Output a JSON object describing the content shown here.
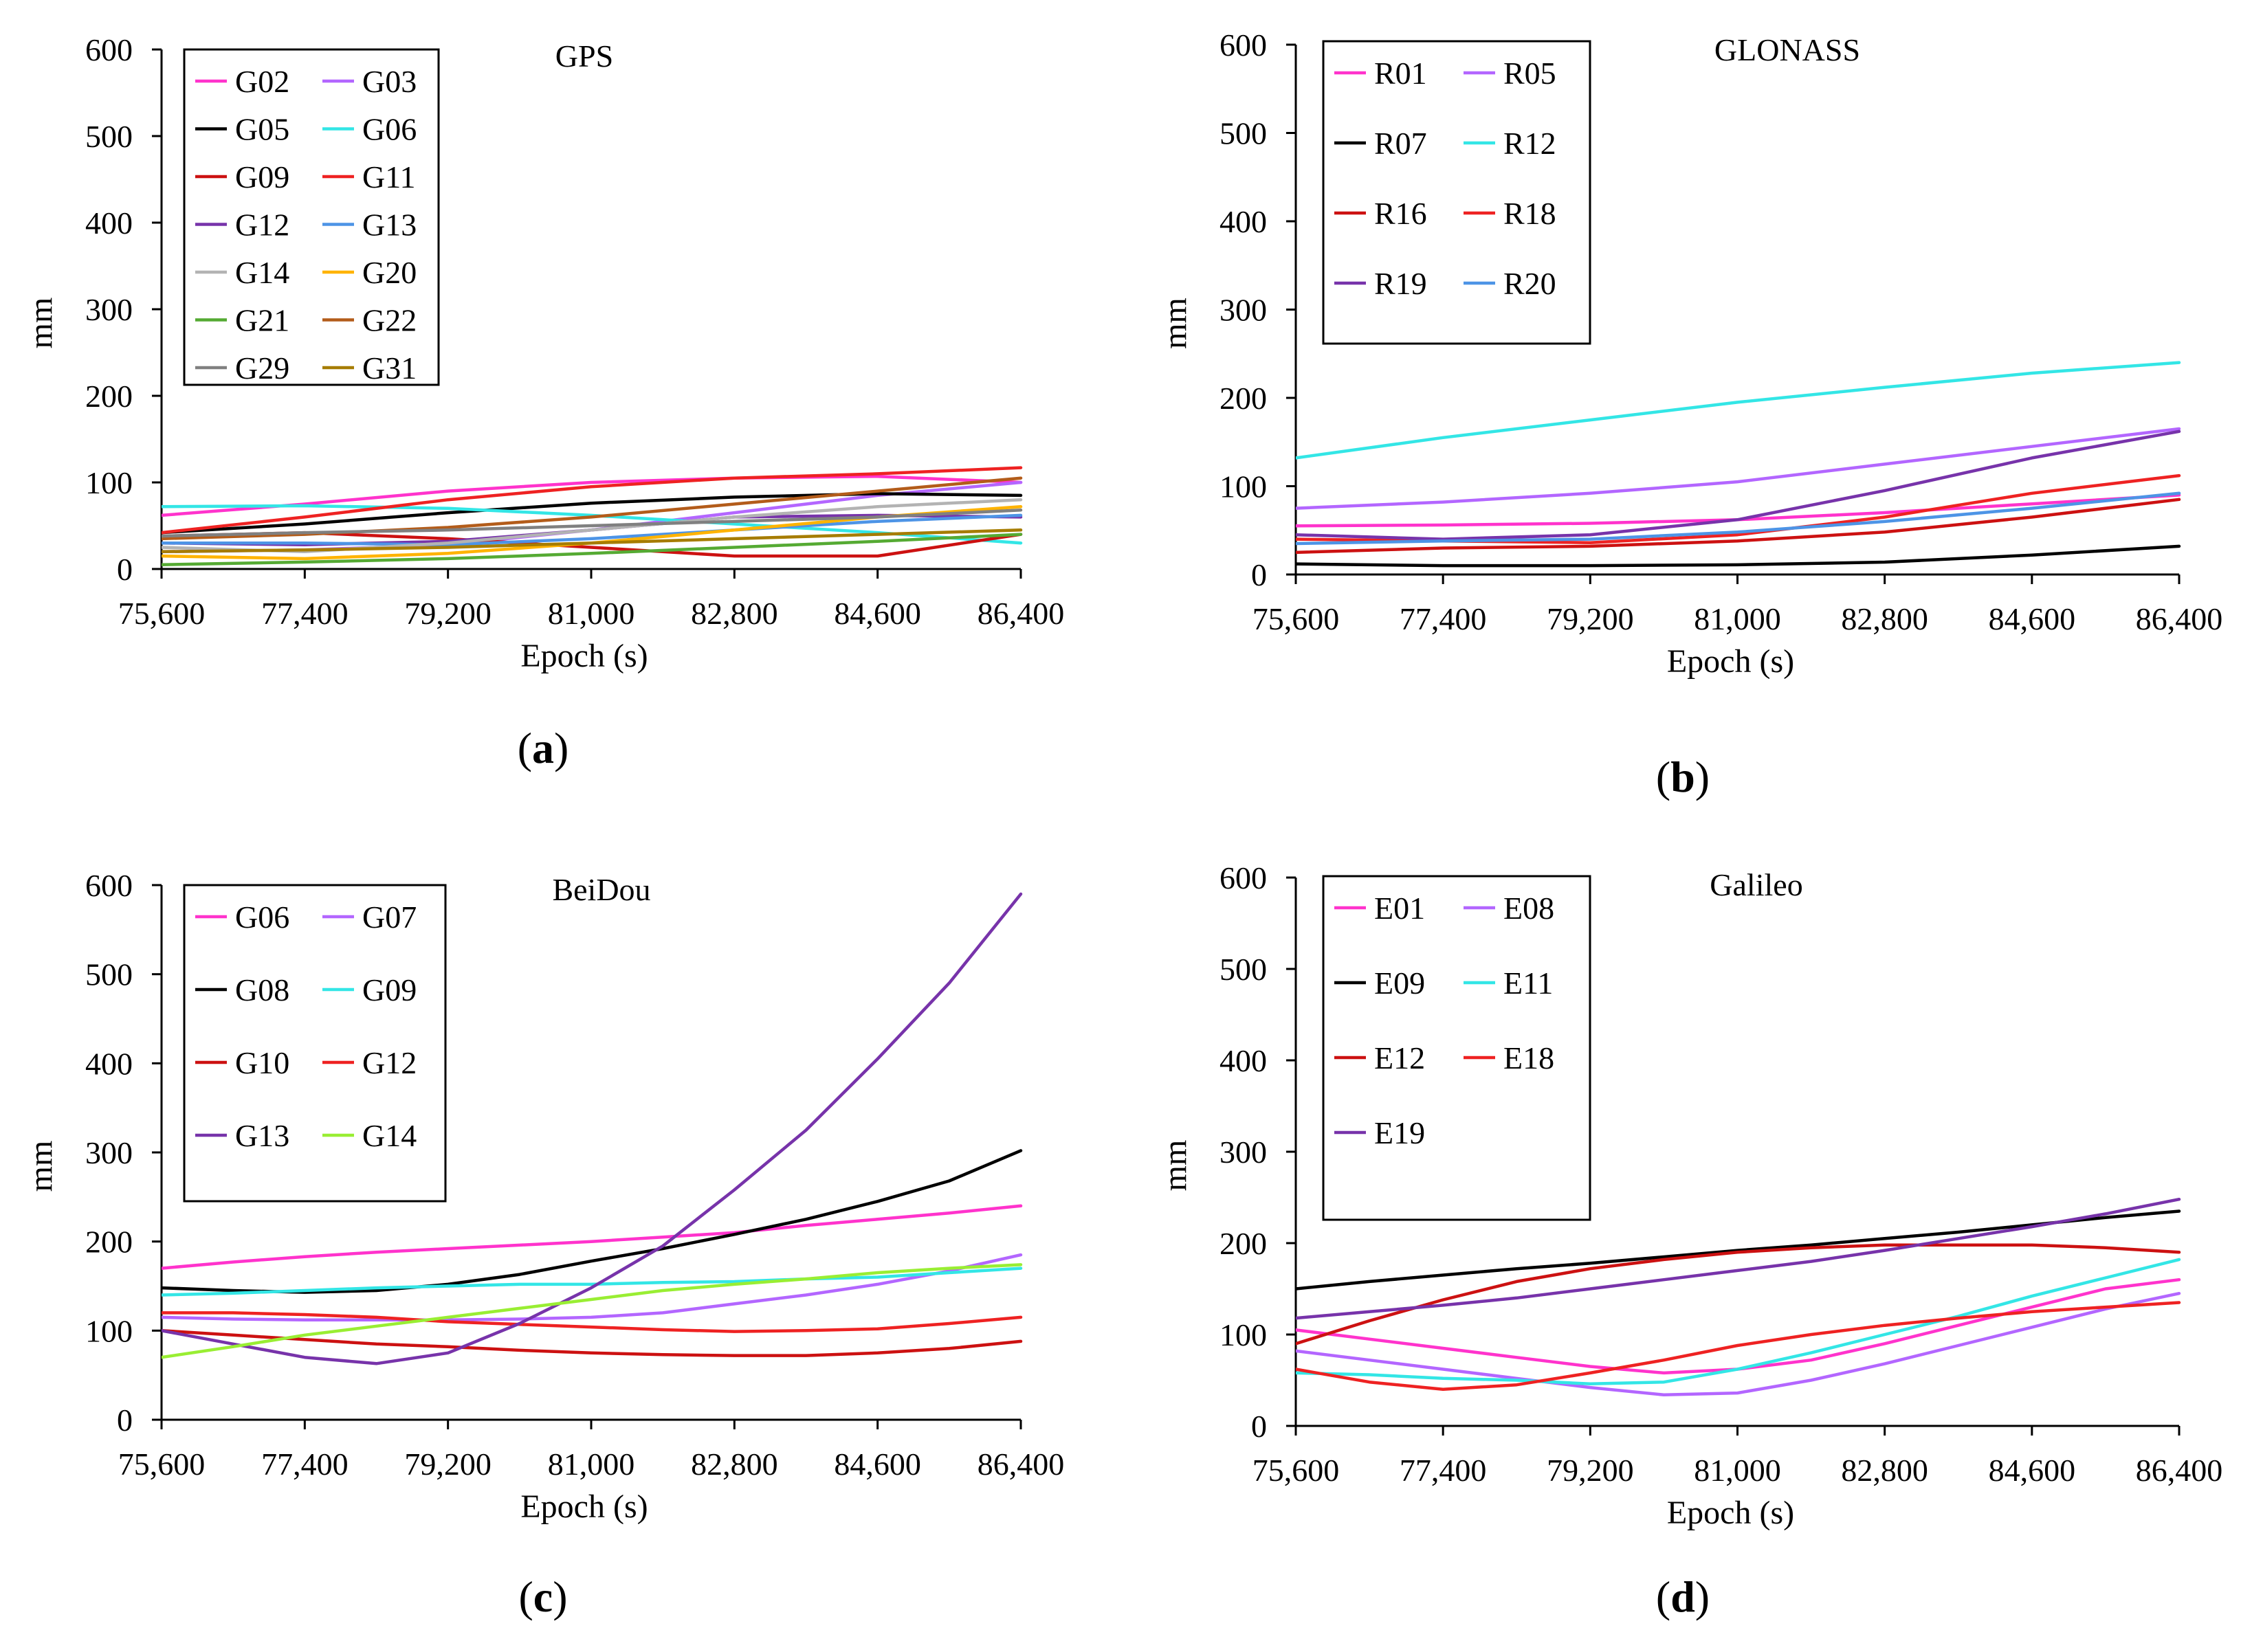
{
  "chart_data": [
    {
      "type": "line",
      "panel_label": "a",
      "title": "GPS",
      "xlabel": "Epoch (s)",
      "ylabel": "mm",
      "xlim": [
        75600,
        86400
      ],
      "ylim": [
        0,
        600
      ],
      "x_ticks": [
        75600,
        77400,
        79200,
        81000,
        82800,
        84600,
        86400
      ],
      "x_tick_labels": [
        "75,600",
        "77,400",
        "79,200",
        "81,000",
        "82,800",
        "84,600",
        "86,400"
      ],
      "y_ticks": [
        0,
        100,
        200,
        300,
        400,
        500,
        600
      ],
      "y_tick_labels": [
        "0",
        "100",
        "200",
        "300",
        "400",
        "500",
        "600"
      ],
      "legend_position": "top-left",
      "legend_columns": 2,
      "x": [
        75600,
        77400,
        79200,
        81000,
        82800,
        84600,
        86400
      ],
      "series": [
        {
          "name": "G02",
          "color": "#ff33cc",
          "values": [
            62,
            75,
            90,
            100,
            105,
            107,
            100
          ]
        },
        {
          "name": "G03",
          "color": "#b366ff",
          "values": [
            20,
            22,
            28,
            45,
            65,
            85,
            100
          ]
        },
        {
          "name": "G05",
          "color": "#000000",
          "values": [
            42,
            52,
            65,
            76,
            83,
            87,
            85
          ]
        },
        {
          "name": "G06",
          "color": "#33e6e6",
          "values": [
            72,
            73,
            70,
            62,
            52,
            42,
            30
          ]
        },
        {
          "name": "G09",
          "color": "#cc1111",
          "values": [
            38,
            42,
            35,
            25,
            15,
            15,
            40
          ]
        },
        {
          "name": "G11",
          "color": "#ee2222",
          "values": [
            42,
            60,
            80,
            95,
            105,
            110,
            117
          ]
        },
        {
          "name": "G12",
          "color": "#7733aa",
          "values": [
            30,
            28,
            32,
            45,
            60,
            62,
            60
          ]
        },
        {
          "name": "G13",
          "color": "#4d94e6",
          "values": [
            30,
            30,
            28,
            35,
            45,
            55,
            62
          ]
        },
        {
          "name": "G14",
          "color": "#b3b3b3",
          "values": [
            25,
            20,
            30,
            45,
            60,
            72,
            80
          ]
        },
        {
          "name": "G20",
          "color": "#ffb300",
          "values": [
            15,
            12,
            18,
            30,
            45,
            60,
            72
          ]
        },
        {
          "name": "G21",
          "color": "#55aa33",
          "values": [
            5,
            8,
            12,
            18,
            25,
            32,
            40
          ]
        },
        {
          "name": "G22",
          "color": "#b35c1a",
          "values": [
            35,
            40,
            48,
            60,
            75,
            90,
            105
          ]
        },
        {
          "name": "G29",
          "color": "#808080",
          "values": [
            38,
            42,
            45,
            50,
            55,
            60,
            68
          ]
        },
        {
          "name": "G31",
          "color": "#a67c00",
          "values": [
            20,
            22,
            25,
            30,
            35,
            40,
            45
          ]
        }
      ]
    },
    {
      "type": "line",
      "panel_label": "b",
      "title": "GLONASS",
      "xlabel": "Epoch (s)",
      "ylabel": "mm",
      "xlim": [
        75600,
        86400
      ],
      "ylim": [
        0,
        600
      ],
      "x_ticks": [
        75600,
        77400,
        79200,
        81000,
        82800,
        84600,
        86400
      ],
      "x_tick_labels": [
        "75,600",
        "77,400",
        "79,200",
        "81,000",
        "82,800",
        "84,600",
        "86,400"
      ],
      "y_ticks": [
        0,
        100,
        200,
        300,
        400,
        500,
        600
      ],
      "y_tick_labels": [
        "0",
        "100",
        "200",
        "300",
        "400",
        "500",
        "600"
      ],
      "legend_position": "top-left",
      "legend_columns": 2,
      "x": [
        75600,
        77400,
        79200,
        81000,
        82800,
        84600,
        86400
      ],
      "series": [
        {
          "name": "R01",
          "color": "#ff33cc",
          "values": [
            55,
            56,
            58,
            62,
            70,
            80,
            90
          ]
        },
        {
          "name": "R05",
          "color": "#b366ff",
          "values": [
            75,
            82,
            92,
            105,
            125,
            145,
            165
          ]
        },
        {
          "name": "R07",
          "color": "#000000",
          "values": [
            12,
            10,
            10,
            11,
            14,
            22,
            32
          ]
        },
        {
          "name": "R12",
          "color": "#33e6e6",
          "values": [
            132,
            155,
            175,
            195,
            212,
            228,
            240
          ]
        },
        {
          "name": "R16",
          "color": "#cc1111",
          "values": [
            25,
            30,
            32,
            38,
            48,
            65,
            85
          ]
        },
        {
          "name": "R18",
          "color": "#ee2222",
          "values": [
            40,
            38,
            36,
            45,
            65,
            92,
            112
          ]
        },
        {
          "name": "R19",
          "color": "#7733aa",
          "values": [
            45,
            40,
            45,
            62,
            95,
            132,
            162
          ]
        },
        {
          "name": "R20",
          "color": "#4d94e6",
          "values": [
            35,
            38,
            40,
            48,
            60,
            75,
            92
          ]
        }
      ]
    },
    {
      "type": "line",
      "panel_label": "c",
      "title": "BeiDou",
      "xlabel": "Epoch (s)",
      "ylabel": "mm",
      "xlim": [
        75600,
        86400
      ],
      "ylim": [
        0,
        600
      ],
      "x_ticks": [
        75600,
        77400,
        79200,
        81000,
        82800,
        84600,
        86400
      ],
      "x_tick_labels": [
        "75,600",
        "77,400",
        "79,200",
        "81,000",
        "82,800",
        "84,600",
        "86,400"
      ],
      "y_ticks": [
        0,
        100,
        200,
        300,
        400,
        500,
        600
      ],
      "y_tick_labels": [
        "0",
        "100",
        "200",
        "300",
        "400",
        "500",
        "600"
      ],
      "legend_position": "top-left",
      "legend_columns": 2,
      "x": [
        75600,
        76500,
        77400,
        78300,
        79200,
        80100,
        81000,
        81900,
        82800,
        83700,
        84600,
        85500,
        86400
      ],
      "series": [
        {
          "name": "G06",
          "color": "#ff33cc",
          "values": [
            170,
            177,
            183,
            188,
            192,
            196,
            200,
            205,
            210,
            218,
            225,
            232,
            240
          ]
        },
        {
          "name": "G07",
          "color": "#b366ff",
          "values": [
            115,
            113,
            112,
            112,
            112,
            113,
            115,
            120,
            130,
            140,
            152,
            167,
            185
          ]
        },
        {
          "name": "G08",
          "color": "#000000",
          "values": [
            148,
            145,
            143,
            145,
            152,
            163,
            178,
            192,
            208,
            225,
            245,
            268,
            302
          ]
        },
        {
          "name": "G09",
          "color": "#33e6e6",
          "values": [
            140,
            142,
            145,
            148,
            150,
            152,
            152,
            154,
            155,
            158,
            160,
            165,
            170
          ]
        },
        {
          "name": "G10",
          "color": "#cc1111",
          "values": [
            100,
            95,
            90,
            85,
            82,
            78,
            75,
            73,
            72,
            72,
            75,
            80,
            88
          ]
        },
        {
          "name": "G12",
          "color": "#ee2222",
          "values": [
            120,
            120,
            118,
            115,
            110,
            107,
            104,
            101,
            99,
            100,
            102,
            108,
            115
          ]
        },
        {
          "name": "G13",
          "color": "#7733aa",
          "values": [
            100,
            85,
            70,
            63,
            75,
            108,
            148,
            195,
            258,
            325,
            405,
            490,
            590
          ]
        },
        {
          "name": "G14",
          "color": "#99ee33",
          "values": [
            70,
            82,
            95,
            105,
            115,
            125,
            135,
            145,
            152,
            158,
            165,
            170,
            174
          ]
        }
      ]
    },
    {
      "type": "line",
      "panel_label": "d",
      "title": "Galileo",
      "xlabel": "Epoch (s)",
      "ylabel": "mm",
      "xlim": [
        75600,
        86400
      ],
      "ylim": [
        0,
        600
      ],
      "x_ticks": [
        75600,
        77400,
        79200,
        81000,
        82800,
        84600,
        86400
      ],
      "x_tick_labels": [
        "75,600",
        "77,400",
        "79,200",
        "81,000",
        "82,800",
        "84,600",
        "86,400"
      ],
      "y_ticks": [
        0,
        100,
        200,
        300,
        400,
        500,
        600
      ],
      "y_tick_labels": [
        "0",
        "100",
        "200",
        "300",
        "400",
        "500",
        "600"
      ],
      "legend_position": "top-left",
      "legend_columns": 2,
      "x": [
        75600,
        76500,
        77400,
        78300,
        79200,
        80100,
        81000,
        81900,
        82800,
        83700,
        84600,
        85500,
        86400
      ],
      "series": [
        {
          "name": "E01",
          "color": "#ff33cc",
          "values": [
            105,
            95,
            85,
            75,
            65,
            58,
            62,
            72,
            90,
            110,
            130,
            150,
            160
          ]
        },
        {
          "name": "E08",
          "color": "#b366ff",
          "values": [
            82,
            72,
            62,
            52,
            42,
            34,
            36,
            50,
            68,
            88,
            108,
            128,
            145
          ]
        },
        {
          "name": "E09",
          "color": "#000000",
          "values": [
            150,
            158,
            165,
            172,
            178,
            185,
            192,
            198,
            205,
            212,
            220,
            228,
            235
          ]
        },
        {
          "name": "E11",
          "color": "#33e6e6",
          "values": [
            58,
            56,
            52,
            50,
            46,
            48,
            62,
            80,
            100,
            120,
            142,
            162,
            182
          ]
        },
        {
          "name": "E12",
          "color": "#cc1111",
          "values": [
            90,
            115,
            138,
            158,
            172,
            182,
            190,
            195,
            198,
            198,
            198,
            195,
            190
          ]
        },
        {
          "name": "E18",
          "color": "#ee2222",
          "values": [
            62,
            48,
            40,
            45,
            58,
            72,
            88,
            100,
            110,
            118,
            125,
            130,
            135
          ]
        },
        {
          "name": "E19",
          "color": "#7733aa",
          "values": [
            118,
            125,
            132,
            140,
            150,
            160,
            170,
            180,
            192,
            205,
            218,
            232,
            248
          ]
        }
      ]
    }
  ]
}
